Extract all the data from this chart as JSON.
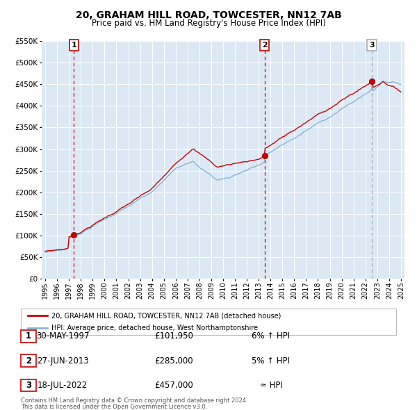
{
  "title": "20, GRAHAM HILL ROAD, TOWCESTER, NN12 7AB",
  "subtitle": "Price paid vs. HM Land Registry's House Price Index (HPI)",
  "bg_color": "#dce9f5",
  "outer_bg_color": "#ffffff",
  "red_line_color": "#cc0000",
  "blue_line_color": "#8ab4d4",
  "grid_color": "#ffffff",
  "ylim": [
    0,
    550000
  ],
  "yticks": [
    0,
    50000,
    100000,
    150000,
    200000,
    250000,
    300000,
    350000,
    400000,
    450000,
    500000,
    550000
  ],
  "ytick_labels": [
    "£0",
    "£50K",
    "£100K",
    "£150K",
    "£200K",
    "£250K",
    "£300K",
    "£350K",
    "£400K",
    "£450K",
    "£500K",
    "£550K"
  ],
  "xmin_year": 1995,
  "xmax_year": 2025,
  "xtick_years": [
    1995,
    1996,
    1997,
    1998,
    1999,
    2000,
    2001,
    2002,
    2003,
    2004,
    2005,
    2006,
    2007,
    2008,
    2009,
    2010,
    2011,
    2012,
    2013,
    2014,
    2015,
    2016,
    2017,
    2018,
    2019,
    2020,
    2021,
    2022,
    2023,
    2024,
    2025
  ],
  "sale_points": [
    {
      "year": 1997.41,
      "value": 101950,
      "label": "1",
      "date": "30-MAY-1997",
      "price": "£101,950",
      "pct": "6% ↑ HPI"
    },
    {
      "year": 2013.49,
      "value": 285000,
      "label": "2",
      "date": "27-JUN-2013",
      "price": "£285,000",
      "pct": "5% ↑ HPI"
    },
    {
      "year": 2022.54,
      "value": 457000,
      "label": "3",
      "date": "18-JUL-2022",
      "price": "£457,000",
      "pct": "≈ HPI"
    }
  ],
  "vline_colors": [
    "#cc0000",
    "#cc0000",
    "#aaaaaa"
  ],
  "legend_line1": "20, GRAHAM HILL ROAD, TOWCESTER, NN12 7AB (detached house)",
  "legend_line2": "HPI: Average price, detached house, West Northamptonshire",
  "footer1": "Contains HM Land Registry data © Crown copyright and database right 2024.",
  "footer2": "This data is licensed under the Open Government Licence v3.0."
}
